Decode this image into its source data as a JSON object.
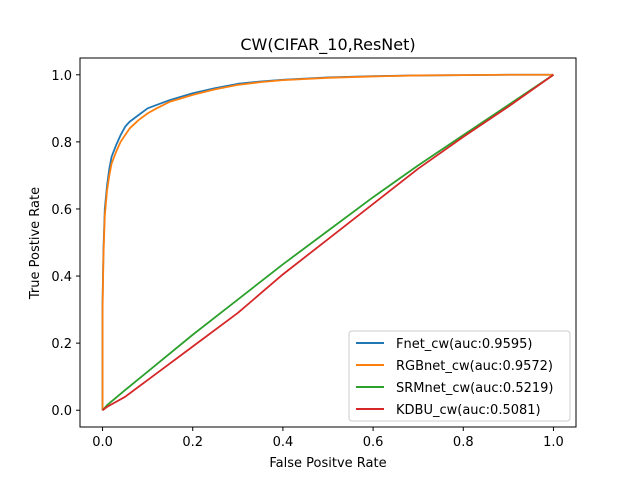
{
  "chart_data": {
    "type": "line",
    "title": "CW(CIFAR_10,ResNet)",
    "xlabel": "False Positve Rate",
    "ylabel": "True Postive Rate",
    "xlim": [
      -0.05,
      1.05
    ],
    "ylim": [
      -0.05,
      1.05
    ],
    "xticks": [
      0.0,
      0.2,
      0.4,
      0.6,
      0.8,
      1.0
    ],
    "yticks": [
      0.0,
      0.2,
      0.4,
      0.6,
      0.8,
      1.0
    ],
    "xtick_labels": [
      "0.0",
      "0.2",
      "0.4",
      "0.6",
      "0.8",
      "1.0"
    ],
    "ytick_labels": [
      "0.0",
      "0.2",
      "0.4",
      "0.6",
      "0.8",
      "1.0"
    ],
    "grid": false,
    "legend_position": "lower-right",
    "series": [
      {
        "name": "Fnet_cw(auc:0.9595)",
        "color": "#1f77b4",
        "x": [
          0.0,
          0.0,
          0.002,
          0.005,
          0.01,
          0.015,
          0.02,
          0.03,
          0.04,
          0.05,
          0.06,
          0.08,
          0.1,
          0.12,
          0.15,
          0.2,
          0.25,
          0.3,
          0.35,
          0.4,
          0.5,
          0.6,
          0.7,
          0.8,
          0.9,
          1.0
        ],
        "y": [
          0.0,
          0.32,
          0.48,
          0.6,
          0.67,
          0.72,
          0.755,
          0.79,
          0.82,
          0.845,
          0.86,
          0.88,
          0.9,
          0.91,
          0.925,
          0.945,
          0.96,
          0.973,
          0.98,
          0.985,
          0.992,
          0.996,
          0.998,
          0.999,
          1.0,
          1.0
        ]
      },
      {
        "name": "RGBnet_cw(auc:0.9572)",
        "color": "#ff7f0e",
        "x": [
          0.0,
          0.0,
          0.002,
          0.005,
          0.01,
          0.015,
          0.02,
          0.03,
          0.04,
          0.05,
          0.06,
          0.08,
          0.1,
          0.12,
          0.15,
          0.2,
          0.25,
          0.3,
          0.35,
          0.4,
          0.5,
          0.6,
          0.7,
          0.8,
          0.9,
          1.0
        ],
        "y": [
          0.0,
          0.3,
          0.46,
          0.58,
          0.655,
          0.7,
          0.735,
          0.77,
          0.8,
          0.82,
          0.84,
          0.865,
          0.885,
          0.9,
          0.92,
          0.94,
          0.957,
          0.97,
          0.978,
          0.984,
          0.991,
          0.995,
          0.998,
          0.999,
          1.0,
          1.0
        ]
      },
      {
        "name": "SRMnet_cw(auc:0.5219)",
        "color": "#2ca02c",
        "x": [
          0.0,
          0.01,
          0.05,
          0.1,
          0.2,
          0.3,
          0.4,
          0.5,
          0.6,
          0.7,
          0.8,
          0.9,
          1.0
        ],
        "y": [
          0.0,
          0.015,
          0.06,
          0.115,
          0.225,
          0.33,
          0.435,
          0.535,
          0.635,
          0.73,
          0.82,
          0.91,
          1.0
        ]
      },
      {
        "name": "KDBU_cw(auc:0.5081)",
        "color": "#d62728",
        "x": [
          0.0,
          0.01,
          0.05,
          0.1,
          0.2,
          0.3,
          0.4,
          0.5,
          0.6,
          0.7,
          0.8,
          0.9,
          1.0
        ],
        "y": [
          0.0,
          0.01,
          0.04,
          0.09,
          0.19,
          0.29,
          0.405,
          0.51,
          0.615,
          0.72,
          0.815,
          0.905,
          1.0
        ]
      }
    ]
  }
}
